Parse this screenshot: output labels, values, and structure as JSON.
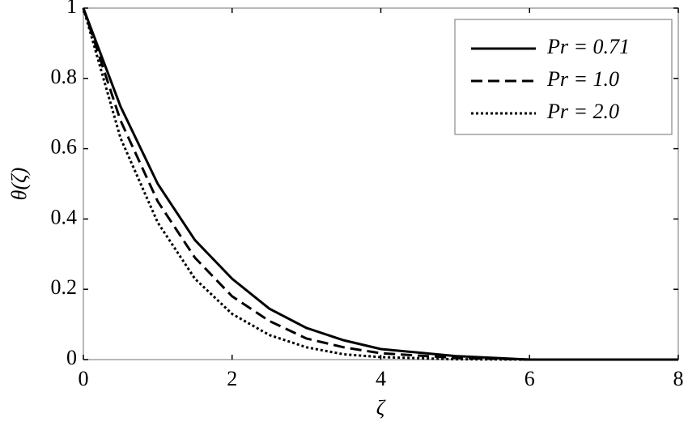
{
  "chart_data": {
    "type": "line",
    "xlabel": "ζ",
    "ylabel": "θ(ζ)",
    "x": [
      0,
      0.5,
      1,
      1.5,
      2,
      2.5,
      3,
      3.5,
      4,
      5,
      6,
      7,
      8
    ],
    "series": [
      {
        "name": "Pr = 0.71",
        "color": "#000000",
        "dash": "solid",
        "values": [
          1,
          0.72,
          0.5,
          0.34,
          0.23,
          0.145,
          0.09,
          0.055,
          0.03,
          0.01,
          0,
          0,
          0
        ]
      },
      {
        "name": "Pr = 1.0",
        "color": "#000000",
        "dash": "dashed",
        "values": [
          1,
          0.68,
          0.45,
          0.29,
          0.18,
          0.11,
          0.06,
          0.035,
          0.018,
          0.005,
          0,
          0,
          0
        ]
      },
      {
        "name": "Pr = 2.0",
        "color": "#000000",
        "dash": "dotted",
        "values": [
          1,
          0.63,
          0.39,
          0.23,
          0.13,
          0.07,
          0.035,
          0.015,
          0.007,
          0.001,
          0,
          0,
          0
        ]
      }
    ],
    "xlim": [
      0,
      8
    ],
    "xticks": [
      0,
      2,
      4,
      6,
      8
    ],
    "ylim": [
      0,
      1
    ],
    "yticks": [
      0,
      0.2,
      0.4,
      0.6,
      0.8,
      1
    ],
    "grid": false,
    "legend": "upper right"
  }
}
